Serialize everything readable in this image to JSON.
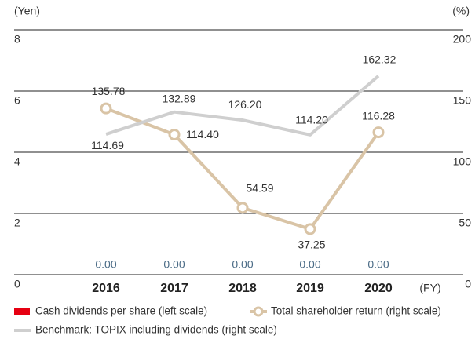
{
  "chart_data": {
    "type": "bar_line",
    "y_axis_label": "(Yen)",
    "y2_axis_label": "(%)",
    "x_axis_label": "(FY)",
    "categories": [
      "2016",
      "2017",
      "2018",
      "2019",
      "2020"
    ],
    "ylim": [
      0,
      8
    ],
    "yticks": [
      0,
      2,
      4,
      6,
      8
    ],
    "y2lim": [
      0,
      200
    ],
    "y2ticks": [
      0,
      50,
      100,
      150,
      200
    ],
    "grid": true,
    "series": [
      {
        "name": "Cash dividends per share (left scale)",
        "type": "bar",
        "color": "#e60012",
        "values": [
          0,
          0,
          0,
          0,
          0
        ],
        "value_labels": [
          "0.00",
          "0.00",
          "0.00",
          "0.00",
          "0.00"
        ]
      },
      {
        "name": "Total shareholder return (right scale)",
        "type": "line",
        "axis": "y2",
        "color": "#d9c4a6",
        "marker": "circle",
        "values": [
          135.78,
          114.4,
          54.59,
          37.25,
          116.28
        ],
        "value_labels": [
          "135.78",
          "114.40",
          "54.59",
          "37.25",
          "116.28"
        ]
      },
      {
        "name": "Benchmark: TOPIX including dividends (right scale)",
        "type": "line",
        "axis": "y2",
        "color": "#cfcfcf",
        "values": [
          114.69,
          132.89,
          126.2,
          114.2,
          162.32
        ],
        "value_labels": [
          "114.69",
          "132.89",
          "126.20",
          "114.20",
          "162.32"
        ]
      }
    ]
  }
}
